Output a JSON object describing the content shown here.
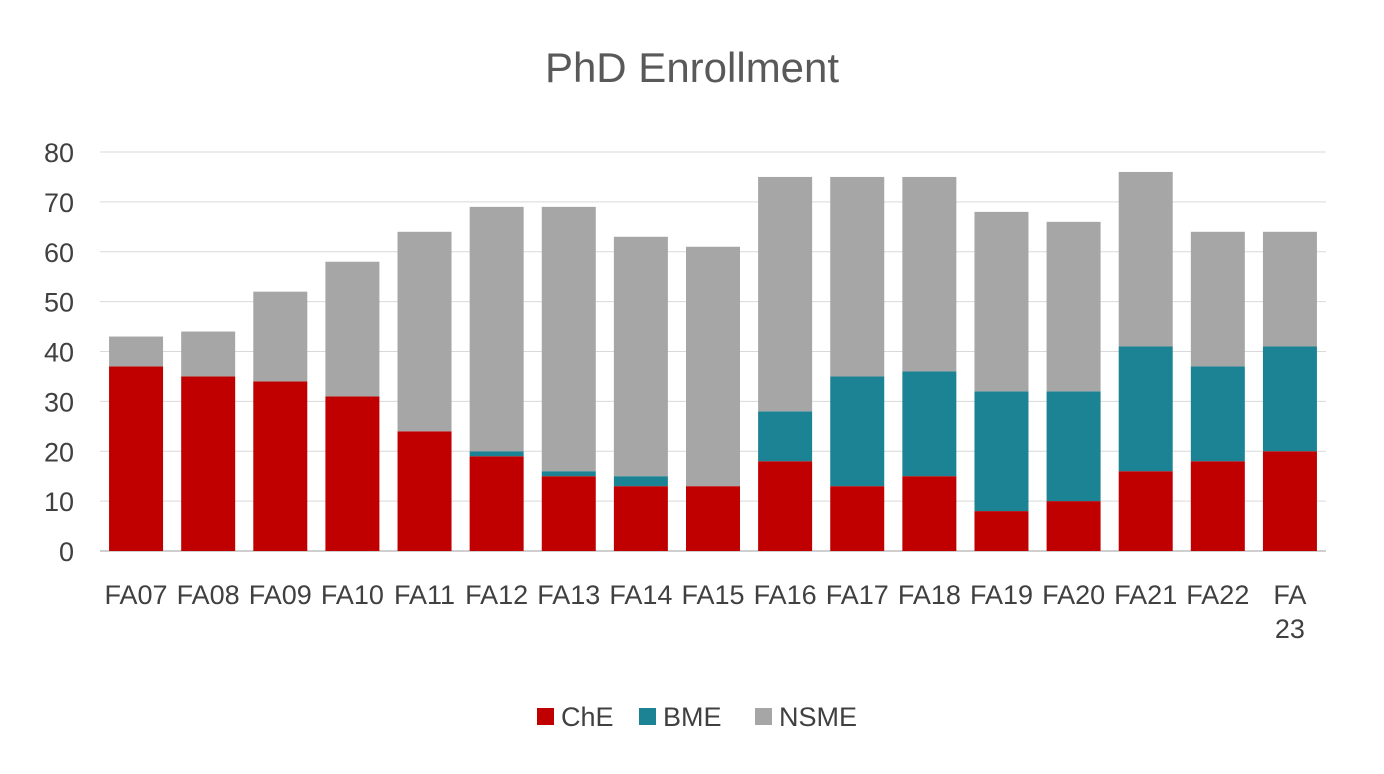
{
  "chart_data": {
    "type": "bar",
    "stacked": true,
    "title": "PhD Enrollment",
    "xlabel": "",
    "ylabel": "",
    "ylim": [
      0,
      80
    ],
    "yticks": [
      0,
      10,
      20,
      30,
      40,
      50,
      60,
      70,
      80
    ],
    "grid": true,
    "legend_position": "bottom",
    "categories": [
      "FA07",
      "FA08",
      "FA09",
      "FA10",
      "FA11",
      "FA12",
      "FA13",
      "FA14",
      "FA15",
      "FA16",
      "FA17",
      "FA18",
      "FA19",
      "FA20",
      "FA21",
      "FA22",
      "FA23"
    ],
    "series": [
      {
        "name": "ChE",
        "color": "#C00000",
        "values": [
          37,
          35,
          34,
          31,
          24,
          19,
          15,
          13,
          13,
          18,
          13,
          15,
          8,
          10,
          16,
          18,
          20
        ]
      },
      {
        "name": "BME",
        "color": "#1B8393",
        "values": [
          0,
          0,
          0,
          0,
          0,
          1,
          1,
          2,
          0,
          10,
          22,
          21,
          24,
          22,
          25,
          19,
          21
        ]
      },
      {
        "name": "NSME",
        "color": "#A6A6A6",
        "values": [
          6,
          9,
          18,
          27,
          40,
          49,
          53,
          48,
          48,
          47,
          40,
          39,
          36,
          34,
          35,
          27,
          23
        ]
      }
    ]
  }
}
